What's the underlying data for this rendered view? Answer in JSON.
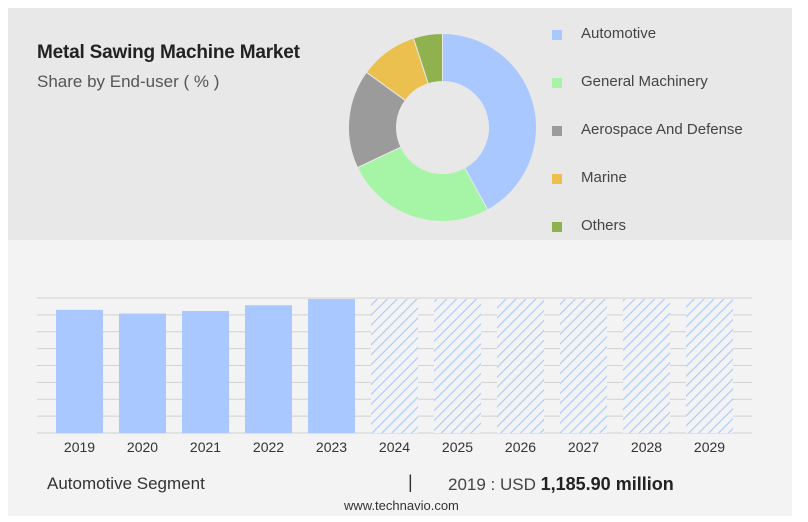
{
  "header": {
    "title": "Metal Sawing Machine Market",
    "subtitle": "Share by End-user ( % )"
  },
  "chart_data": [
    {
      "type": "pie",
      "variant": "donut",
      "title": "Metal Sawing Machine Market",
      "subtitle": "Share by End-user ( % )",
      "legend_position": "right",
      "slices": [
        {
          "name": "Automotive",
          "value": 42,
          "color": "#a8c8ff"
        },
        {
          "name": "General Machinery",
          "value": 26,
          "color": "#a6f5a6"
        },
        {
          "name": "Aerospace And Defense",
          "value": 17,
          "color": "#9b9b9b"
        },
        {
          "name": "Marine",
          "value": 10,
          "color": "#ebc04e"
        },
        {
          "name": "Others",
          "value": 5,
          "color": "#8fb24f"
        }
      ]
    },
    {
      "type": "bar",
      "categories": [
        "2019",
        "2020",
        "2021",
        "2022",
        "2023",
        "2024",
        "2025",
        "2026",
        "2027",
        "2028",
        "2029"
      ],
      "values": [
        1185.9,
        1150,
        1175,
        1230,
        1290,
        1290,
        1290,
        1290,
        1290,
        1290,
        1290
      ],
      "forecast_from": "2024",
      "ylim": [
        0,
        1300
      ],
      "grid": true,
      "bar_color": "#a8c8ff",
      "forecast_pattern": "diagonal-hatch"
    }
  ],
  "footer": {
    "segment": "Automotive Segment",
    "separator": "|",
    "value_prefix": "2019 : USD",
    "value_bold": "1,185.90 million",
    "source": "www.technavio.com"
  }
}
